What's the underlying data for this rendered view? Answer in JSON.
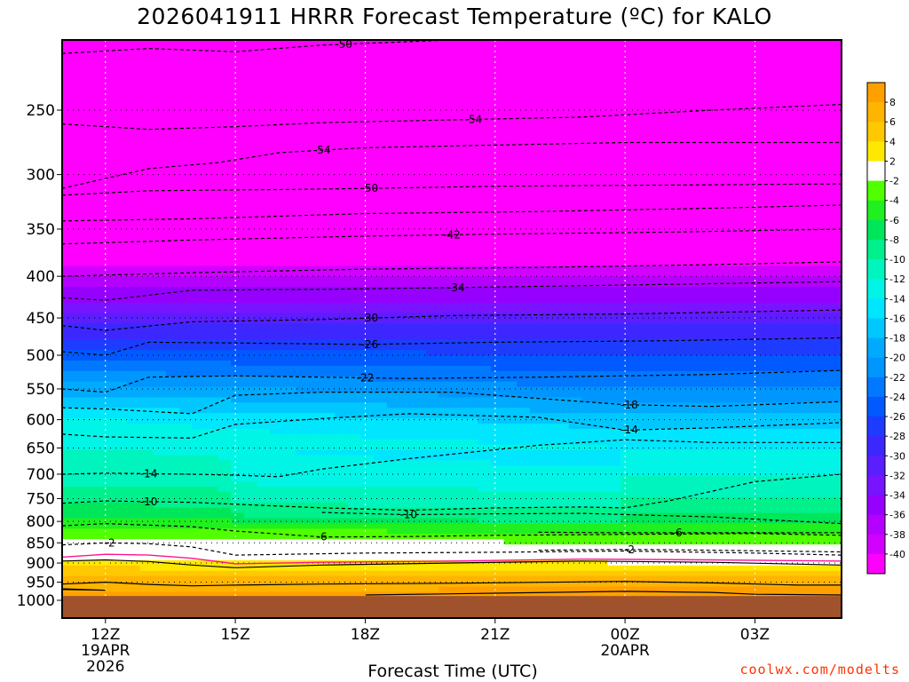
{
  "title": "2026041911 HRRR Forecast Temperature (ºC) for KALO",
  "credit": "coolwx.com/modelts",
  "colors": {
    "ground": "#a0522d",
    "freezing_line": "#ff1493",
    "contour": "#000000"
  },
  "chart_data": {
    "type": "heatmap",
    "title": "2026041911 HRRR Forecast Temperature (ºC) for KALO",
    "xlabel": "Forecast Time (UTC)",
    "ylabel": "",
    "x_ticks": [
      {
        "hour": 12,
        "label": "12Z",
        "sub1": "19APR",
        "sub2": "2026"
      },
      {
        "hour": 15,
        "label": "15Z",
        "sub1": "",
        "sub2": ""
      },
      {
        "hour": 18,
        "label": "18Z",
        "sub1": "",
        "sub2": ""
      },
      {
        "hour": 21,
        "label": "21Z",
        "sub1": "",
        "sub2": ""
      },
      {
        "hour": 24,
        "label": "00Z",
        "sub1": "20APR",
        "sub2": ""
      },
      {
        "hour": 27,
        "label": "03Z",
        "sub1": "",
        "sub2": ""
      }
    ],
    "xlim_hours": [
      11,
      29
    ],
    "y_ticks_hpa": [
      250,
      300,
      350,
      400,
      450,
      500,
      550,
      600,
      650,
      700,
      750,
      800,
      850,
      900,
      950,
      1000
    ],
    "ylim_hpa": [
      200,
      1040
    ],
    "ground_pressure_hpa": 988,
    "colorbar": {
      "labels": [
        "8",
        "6",
        "4",
        "2",
        "-2",
        "-4",
        "-6",
        "-8",
        "-10",
        "-12",
        "-14",
        "-16",
        "-18",
        "-20",
        "-22",
        "-24",
        "-26",
        "-28",
        "-30",
        "-32",
        "-34",
        "-36",
        "-38",
        "-40"
      ],
      "segments": [
        {
          "value": 9,
          "color": "#ffa000"
        },
        {
          "value": 7,
          "color": "#ffb400"
        },
        {
          "value": 5,
          "color": "#ffc800"
        },
        {
          "value": 3,
          "color": "#ffe800"
        },
        {
          "value": 0,
          "color": "#ffffff"
        },
        {
          "value": -3,
          "color": "#50ff00"
        },
        {
          "value": -5,
          "color": "#20f020"
        },
        {
          "value": -7,
          "color": "#00e65a"
        },
        {
          "value": -9,
          "color": "#00f08c"
        },
        {
          "value": -11,
          "color": "#00f5be"
        },
        {
          "value": -13,
          "color": "#00f5e6"
        },
        {
          "value": -15,
          "color": "#00e6ff"
        },
        {
          "value": -17,
          "color": "#00c8ff"
        },
        {
          "value": -19,
          "color": "#00aaff"
        },
        {
          "value": -21,
          "color": "#0096ff"
        },
        {
          "value": -23,
          "color": "#0078ff"
        },
        {
          "value": -25,
          "color": "#005aff"
        },
        {
          "value": -27,
          "color": "#1e3cff"
        },
        {
          "value": -29,
          "color": "#3c28ff"
        },
        {
          "value": -31,
          "color": "#5a1eff"
        },
        {
          "value": -33,
          "color": "#7814ff"
        },
        {
          "value": -35,
          "color": "#9600ff"
        },
        {
          "value": -37,
          "color": "#b400ff"
        },
        {
          "value": -39,
          "color": "#d200ff"
        },
        {
          "value": -41,
          "color": "#ff00ff"
        }
      ]
    },
    "isotherms": [
      {
        "value": -54,
        "label": "-54",
        "hour_at": 20.5,
        "points": [
          [
            11,
            260
          ],
          [
            13,
            264
          ],
          [
            15,
            262
          ],
          [
            17,
            259
          ],
          [
            20,
            257
          ],
          [
            23,
            255
          ],
          [
            26,
            250
          ],
          [
            29,
            246
          ]
        ]
      },
      {
        "value": -54,
        "label": "-54",
        "hour_at": 17.0,
        "points": [
          [
            11,
            312
          ],
          [
            13,
            295
          ],
          [
            14.6,
            290
          ],
          [
            16,
            282
          ],
          [
            18,
            278
          ],
          [
            21,
            276
          ],
          [
            24,
            274
          ],
          [
            29,
            274
          ]
        ]
      },
      {
        "value": -50,
        "label": "-50",
        "hour_at": 17.5,
        "points": [
          [
            11,
            213
          ],
          [
            13,
            210
          ],
          [
            15,
            212
          ],
          [
            17,
            208
          ],
          [
            20,
            205
          ],
          [
            23,
            203
          ],
          [
            26,
            202
          ],
          [
            29,
            201
          ]
        ]
      },
      {
        "value": -50,
        "label": "-50",
        "hour_at": 18.1,
        "points": [
          [
            11,
            318
          ],
          [
            13,
            314
          ],
          [
            16,
            313
          ],
          [
            18,
            312
          ],
          [
            21,
            310
          ],
          [
            25,
            309
          ],
          [
            29,
            308
          ]
        ]
      },
      {
        "value": -46,
        "label": "",
        "hour_at": 0,
        "points": [
          [
            11,
            342
          ],
          [
            14,
            340
          ],
          [
            18,
            335
          ],
          [
            22,
            333
          ],
          [
            26,
            330
          ],
          [
            29,
            327
          ]
        ]
      },
      {
        "value": -42,
        "label": "-42",
        "hour_at": 20.0,
        "points": [
          [
            11,
            365
          ],
          [
            14,
            361
          ],
          [
            18,
            357
          ],
          [
            21,
            355
          ],
          [
            25,
            353
          ],
          [
            29,
            350
          ]
        ]
      },
      {
        "value": -38,
        "label": "",
        "hour_at": 0,
        "points": [
          [
            11,
            400
          ],
          [
            14,
            396
          ],
          [
            18,
            392
          ],
          [
            22,
            390
          ],
          [
            26,
            387
          ],
          [
            29,
            384
          ]
        ]
      },
      {
        "value": -34,
        "label": "-34",
        "hour_at": 20.1,
        "points": [
          [
            11,
            425
          ],
          [
            12,
            428
          ],
          [
            14,
            416
          ],
          [
            17,
            415
          ],
          [
            20,
            413
          ],
          [
            24,
            410
          ],
          [
            29,
            406
          ]
        ]
      },
      {
        "value": -30,
        "label": "-30",
        "hour_at": 18.1,
        "points": [
          [
            11,
            460
          ],
          [
            12,
            466
          ],
          [
            14,
            455
          ],
          [
            17,
            452
          ],
          [
            20,
            447
          ],
          [
            24,
            445
          ],
          [
            29,
            440
          ]
        ]
      },
      {
        "value": -26,
        "label": "-26",
        "hour_at": 18.1,
        "points": [
          [
            11,
            495
          ],
          [
            12,
            500
          ],
          [
            13,
            482
          ],
          [
            15,
            483
          ],
          [
            18,
            485
          ],
          [
            21,
            482
          ],
          [
            25,
            480
          ],
          [
            29,
            476
          ]
        ]
      },
      {
        "value": -22,
        "label": "-22",
        "hour_at": 18.0,
        "points": [
          [
            11,
            550
          ],
          [
            12,
            555
          ],
          [
            13,
            532
          ],
          [
            15,
            530
          ],
          [
            17,
            532
          ],
          [
            19,
            534
          ],
          [
            22,
            532
          ],
          [
            26,
            528
          ],
          [
            29,
            522
          ]
        ]
      },
      {
        "value": -18,
        "label": "-18",
        "hour_at": 24.1,
        "points": [
          [
            11,
            580
          ],
          [
            12,
            582
          ],
          [
            14,
            590
          ],
          [
            15,
            560
          ],
          [
            17,
            555
          ],
          [
            20,
            555
          ],
          [
            24,
            575
          ],
          [
            26,
            578
          ],
          [
            29,
            570
          ]
        ]
      },
      {
        "value": -14,
        "label": "-14",
        "hour_at": 24.1,
        "points": [
          [
            11,
            625
          ],
          [
            12,
            630
          ],
          [
            14,
            632
          ],
          [
            15,
            608
          ],
          [
            17,
            598
          ],
          [
            19,
            590
          ],
          [
            22,
            596
          ],
          [
            24,
            618
          ],
          [
            26,
            614
          ],
          [
            29,
            605
          ]
        ]
      },
      {
        "value": -14,
        "label": "-14",
        "hour_at": 13.0,
        "points": [
          [
            11,
            700
          ],
          [
            12,
            698
          ],
          [
            14,
            700
          ],
          [
            15,
            702
          ],
          [
            16,
            705
          ],
          [
            17,
            690
          ],
          [
            19,
            670
          ],
          [
            22,
            645
          ],
          [
            24,
            635
          ],
          [
            26,
            640
          ],
          [
            29,
            640
          ]
        ]
      },
      {
        "value": -10,
        "label": "-10",
        "hour_at": 13.0,
        "points": [
          [
            11,
            760
          ],
          [
            12,
            755
          ],
          [
            14,
            758
          ],
          [
            15,
            762
          ],
          [
            17,
            770
          ],
          [
            19,
            775
          ],
          [
            21,
            770
          ],
          [
            23,
            768
          ],
          [
            24,
            770
          ],
          [
            25,
            755
          ],
          [
            27,
            715
          ],
          [
            29,
            700
          ]
        ]
      },
      {
        "value": -10,
        "label": "-10",
        "hour_at": 19.0,
        "points": [
          [
            17,
            780
          ],
          [
            19,
            785
          ],
          [
            21,
            783
          ],
          [
            23,
            782
          ],
          [
            26,
            790
          ],
          [
            29,
            805
          ]
        ]
      },
      {
        "value": -6,
        "label": "-6",
        "hour_at": 17.0,
        "points": [
          [
            11,
            810
          ],
          [
            12,
            805
          ],
          [
            14,
            812
          ],
          [
            15,
            822
          ],
          [
            17,
            836
          ],
          [
            19,
            835
          ],
          [
            21,
            832
          ],
          [
            24,
            830
          ],
          [
            27,
            828
          ],
          [
            29,
            832
          ]
        ]
      },
      {
        "value": -6,
        "label": "-6",
        "hour_at": 25.2,
        "points": [
          [
            22,
            825
          ],
          [
            24,
            826
          ],
          [
            26,
            826
          ],
          [
            28,
            826
          ],
          [
            29,
            826
          ]
        ]
      },
      {
        "value": -2,
        "label": "-2",
        "hour_at": 12.1,
        "points": [
          [
            11,
            855
          ],
          [
            12,
            850
          ],
          [
            13,
            852
          ],
          [
            14,
            860
          ],
          [
            15,
            880
          ],
          [
            18,
            875
          ],
          [
            21,
            873
          ],
          [
            24,
            870
          ],
          [
            27,
            875
          ],
          [
            29,
            880
          ]
        ]
      },
      {
        "value": -2,
        "label": "-2",
        "hour_at": 24.1,
        "points": [
          [
            22,
            868
          ],
          [
            24,
            866
          ],
          [
            26,
            868
          ],
          [
            29,
            872
          ]
        ]
      },
      {
        "value": 2,
        "label": "",
        "hour_at": 0,
        "points": [
          [
            11,
            895
          ],
          [
            12,
            892
          ],
          [
            13,
            896
          ],
          [
            14,
            905
          ],
          [
            15,
            912
          ],
          [
            17,
            905
          ],
          [
            20,
            900
          ],
          [
            23,
            895
          ],
          [
            26,
            898
          ],
          [
            29,
            905
          ]
        ]
      },
      {
        "value": 6,
        "label": "",
        "hour_at": 0,
        "points": [
          [
            11,
            955
          ],
          [
            12,
            950
          ],
          [
            13,
            956
          ],
          [
            14,
            960
          ],
          [
            15,
            958
          ],
          [
            17,
            955
          ],
          [
            20,
            953
          ],
          [
            24,
            948
          ],
          [
            26,
            952
          ],
          [
            28,
            958
          ],
          [
            29,
            958
          ]
        ]
      },
      {
        "value": 6,
        "label": "",
        "hour_at": 0,
        "points": [
          [
            11,
            968
          ],
          [
            12,
            972
          ],
          [
            11,
            970
          ]
        ]
      },
      {
        "value": 10,
        "label": "",
        "hour_at": 0,
        "points": [
          [
            18,
            985
          ],
          [
            21,
            980
          ],
          [
            24,
            975
          ],
          [
            26,
            978
          ],
          [
            27,
            983
          ],
          [
            29,
            985
          ]
        ]
      }
    ],
    "freezing_line": [
      [
        11,
        885
      ],
      [
        12,
        878
      ],
      [
        13,
        880
      ],
      [
        14,
        888
      ],
      [
        15,
        902
      ],
      [
        17,
        898
      ],
      [
        20,
        895
      ],
      [
        23,
        890
      ],
      [
        26,
        892
      ],
      [
        29,
        895
      ]
    ],
    "field_model": {
      "levels_hpa": [
        200,
        250,
        300,
        350,
        400,
        450,
        500,
        550,
        600,
        650,
        700,
        750,
        800,
        850,
        900,
        950,
        1000
      ],
      "temps_12z": [
        -48,
        -54,
        -52,
        -46,
        -38,
        -31,
        -25,
        -19,
        -14,
        -12,
        -11,
        -9,
        -5,
        -1,
        3,
        7,
        9
      ],
      "temps_24z": [
        -50,
        -55,
        -52,
        -46,
        -38,
        -31,
        -26,
        -22,
        -17,
        -14,
        -12,
        -10,
        -7,
        -2,
        2,
        7,
        10
      ]
    }
  }
}
